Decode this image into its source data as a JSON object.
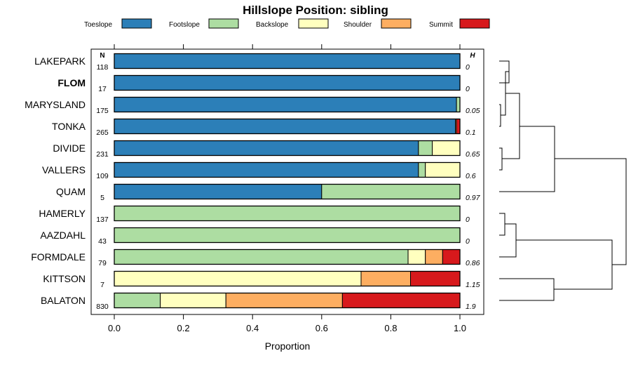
{
  "chart_data": {
    "type": "stacked-bar",
    "title": "Hillslope Position: sibling",
    "xlabel": "Proportion",
    "xlim": [
      0,
      1
    ],
    "ticks": [
      "0.0",
      "0.2",
      "0.4",
      "0.6",
      "0.8",
      "1.0"
    ],
    "tick_values": [
      0,
      0.2,
      0.4,
      0.6,
      0.8,
      1.0
    ],
    "n_header": "N",
    "h_header": "H",
    "categories": [
      {
        "name": "Toeslope",
        "color": "#2C7FB8"
      },
      {
        "name": "Footslope",
        "color": "#ADDDA2"
      },
      {
        "name": "Backslope",
        "color": "#FFFFBF"
      },
      {
        "name": "Shoulder",
        "color": "#FDAE61"
      },
      {
        "name": "Summit",
        "color": "#D7191C"
      }
    ],
    "rows": [
      {
        "name": "LAKEPARK",
        "n": "118",
        "h": "0",
        "bold": false,
        "values": [
          1.0,
          0,
          0,
          0,
          0
        ]
      },
      {
        "name": "FLOM",
        "n": "17",
        "h": "0",
        "bold": true,
        "values": [
          1.0,
          0,
          0,
          0,
          0
        ]
      },
      {
        "name": "MARYSLAND",
        "n": "175",
        "h": "0.05",
        "bold": false,
        "values": [
          0.99,
          0.01,
          0,
          0,
          0
        ]
      },
      {
        "name": "TONKA",
        "n": "265",
        "h": "0.1",
        "bold": false,
        "values": [
          0.987,
          0,
          0,
          0.003,
          0.01
        ]
      },
      {
        "name": "DIVIDE",
        "n": "231",
        "h": "0.65",
        "bold": false,
        "values": [
          0.88,
          0.04,
          0.08,
          0,
          0
        ]
      },
      {
        "name": "VALLERS",
        "n": "109",
        "h": "0.6",
        "bold": false,
        "values": [
          0.88,
          0.02,
          0.1,
          0,
          0
        ]
      },
      {
        "name": "QUAM",
        "n": "5",
        "h": "0.97",
        "bold": false,
        "values": [
          0.6,
          0.4,
          0,
          0,
          0
        ]
      },
      {
        "name": "HAMERLY",
        "n": "137",
        "h": "0",
        "bold": false,
        "values": [
          0,
          1.0,
          0,
          0,
          0
        ]
      },
      {
        "name": "AAZDAHL",
        "n": "43",
        "h": "0",
        "bold": false,
        "values": [
          0,
          1.0,
          0,
          0,
          0
        ]
      },
      {
        "name": "FORMDALE",
        "n": "79",
        "h": "0.86",
        "bold": false,
        "values": [
          0,
          0.85,
          0.05,
          0.05,
          0.05
        ]
      },
      {
        "name": "KITTSON",
        "n": "7",
        "h": "1.15",
        "bold": false,
        "values": [
          0,
          0,
          0.714,
          0.143,
          0.143
        ]
      },
      {
        "name": "BALATON",
        "n": "830",
        "h": "1.9",
        "bold": false,
        "values": [
          0,
          0.133,
          0.19,
          0.337,
          0.34
        ]
      }
    ]
  }
}
